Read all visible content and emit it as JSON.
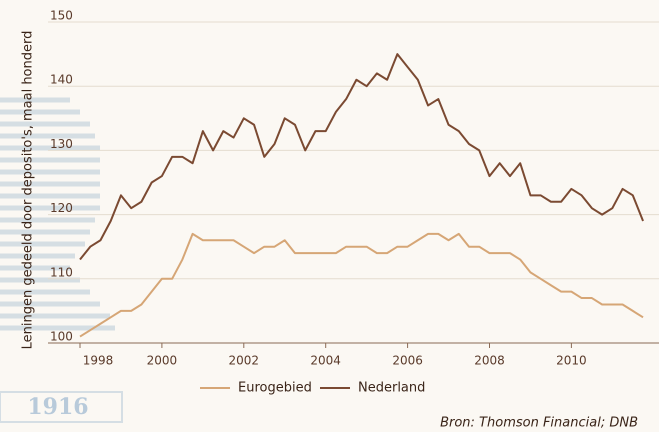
{
  "chart_data": {
    "type": "line",
    "y_label": "Leningen gedeeld door deposito's, maal honderd",
    "source": "Bron: Thomson Financial; DNB",
    "logo_text": "1916",
    "x": [
      1998,
      1998.25,
      1998.5,
      1998.75,
      1999,
      1999.25,
      1999.5,
      1999.75,
      2000,
      2000.25,
      2000.5,
      2000.75,
      2001,
      2001.25,
      2001.5,
      2001.75,
      2002,
      2002.25,
      2002.5,
      2002.75,
      2003,
      2003.25,
      2003.5,
      2003.75,
      2004,
      2004.25,
      2004.5,
      2004.75,
      2005,
      2005.25,
      2005.5,
      2005.75,
      2006,
      2006.25,
      2006.5,
      2006.75,
      2007,
      2007.25,
      2007.5,
      2007.75,
      2008,
      2008.25,
      2008.5,
      2008.75,
      2009,
      2009.25,
      2009.5,
      2009.75,
      2010,
      2010.25,
      2010.5,
      2010.75,
      2011,
      2011.25,
      2011.5,
      2011.75
    ],
    "series": [
      {
        "name": "Eurogebied",
        "color": "#d6a676",
        "values": [
          101,
          102,
          103,
          104,
          105,
          105,
          106,
          108,
          110,
          110,
          113,
          117,
          116,
          116,
          116,
          116,
          115,
          114,
          115,
          115,
          116,
          114,
          114,
          114,
          114,
          114,
          115,
          115,
          115,
          114,
          114,
          115,
          115,
          116,
          117,
          117,
          116,
          117,
          115,
          115,
          114,
          114,
          114,
          113,
          111,
          110,
          109,
          108,
          108,
          107,
          107,
          106,
          106,
          106,
          105,
          104
        ]
      },
      {
        "name": "Nederland",
        "color": "#7b4a32",
        "values": [
          113,
          115,
          116,
          119,
          123,
          121,
          122,
          125,
          126,
          129,
          129,
          128,
          133,
          130,
          133,
          132,
          135,
          134,
          129,
          131,
          135,
          134,
          130,
          133,
          133,
          136,
          138,
          141,
          140,
          142,
          141,
          145,
          143,
          141,
          137,
          138,
          134,
          133,
          131,
          130,
          126,
          128,
          126,
          128,
          123,
          123,
          122,
          122,
          124,
          123,
          121,
          120,
          121,
          124,
          123,
          119
        ]
      }
    ],
    "xlim": [
      1998,
      2011.7
    ],
    "xticks": [
      1998,
      2000,
      2002,
      2004,
      2006,
      2008,
      2010
    ],
    "ylim": [
      100,
      150
    ],
    "yticks": [
      100,
      110,
      120,
      130,
      140,
      150
    ],
    "grid": true,
    "legend": "bottom"
  }
}
